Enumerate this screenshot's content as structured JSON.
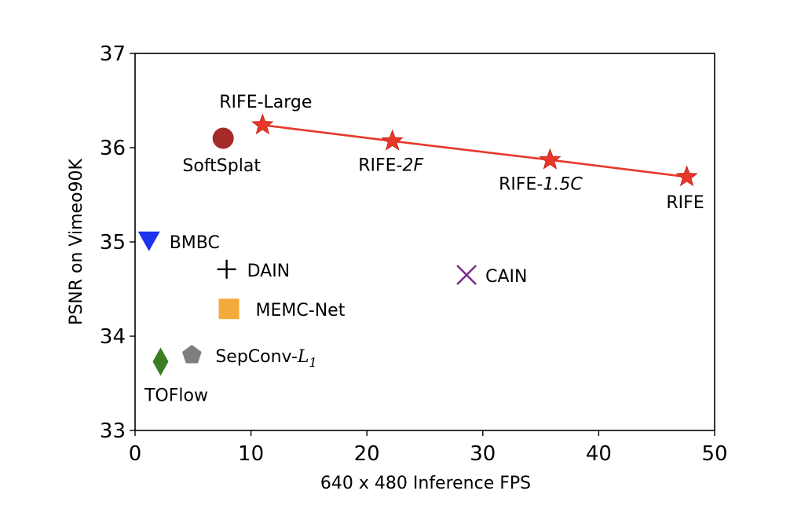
{
  "chart_data": {
    "type": "scatter",
    "title": "",
    "xlabel": "640 x 480 Inference FPS",
    "ylabel": "PSNR on Vimeo90K",
    "xlim": [
      0,
      50
    ],
    "ylim": [
      33,
      37
    ],
    "xticks": [
      "0",
      "10",
      "20",
      "30",
      "40",
      "50"
    ],
    "yticks": [
      "33",
      "34",
      "35",
      "36",
      "37"
    ],
    "grid": false,
    "legend": "none",
    "line_series": {
      "color": "#e8372b",
      "points": [
        {
          "x": 11.0,
          "y": 36.24
        },
        {
          "x": 22.2,
          "y": 36.07
        },
        {
          "x": 35.8,
          "y": 35.87
        },
        {
          "x": 47.6,
          "y": 35.69
        }
      ]
    },
    "points": [
      {
        "id": "rife-large",
        "x": 11.0,
        "y": 36.24,
        "marker": "star",
        "color": "#e8372b",
        "label_parts": [
          {
            "text": "RIFE-Large",
            "italic": false
          }
        ]
      },
      {
        "id": "rife-2f",
        "x": 22.2,
        "y": 36.07,
        "marker": "star",
        "color": "#e8372b",
        "label_parts": [
          {
            "text": "RIFE-",
            "italic": false
          },
          {
            "text": "2F",
            "italic": true
          }
        ]
      },
      {
        "id": "rife-15c",
        "x": 35.8,
        "y": 35.87,
        "marker": "star",
        "color": "#e8372b",
        "label_parts": [
          {
            "text": "RIFE-",
            "italic": false
          },
          {
            "text": "1.5C",
            "italic": true
          }
        ]
      },
      {
        "id": "rife",
        "x": 47.6,
        "y": 35.69,
        "marker": "star",
        "color": "#e8372b",
        "label_parts": [
          {
            "text": "RIFE",
            "italic": false
          }
        ]
      },
      {
        "id": "softsplat",
        "x": 7.6,
        "y": 36.1,
        "marker": "circle",
        "color": "#a52a2a",
        "label_parts": [
          {
            "text": "SoftSplat",
            "italic": false
          }
        ]
      },
      {
        "id": "bmbc",
        "x": 1.2,
        "y": 35.01,
        "marker": "triangle-down",
        "color": "#1f32f0",
        "label_parts": [
          {
            "text": "BMBC",
            "italic": false
          }
        ]
      },
      {
        "id": "dain",
        "x": 7.9,
        "y": 34.71,
        "marker": "plus",
        "color": "#000000",
        "label_parts": [
          {
            "text": "DAIN",
            "italic": false
          }
        ]
      },
      {
        "id": "cain",
        "x": 28.6,
        "y": 34.65,
        "marker": "x",
        "color": "#7b2d8e",
        "label_parts": [
          {
            "text": "CAIN",
            "italic": false
          }
        ]
      },
      {
        "id": "memc-net",
        "x": 8.1,
        "y": 34.29,
        "marker": "square",
        "color": "#f4a93b",
        "label_parts": [
          {
            "text": "MEMC-Net",
            "italic": false
          }
        ]
      },
      {
        "id": "sepconv-l1",
        "x": 4.9,
        "y": 33.8,
        "marker": "pentagon",
        "color": "#7f7f7f",
        "label_parts": [
          {
            "text": "SepConv-",
            "italic": false
          },
          {
            "text": "L",
            "math": true
          },
          {
            "text": "1",
            "sub": true
          }
        ]
      },
      {
        "id": "toflow",
        "x": 2.2,
        "y": 33.73,
        "marker": "diamond",
        "color": "#3a7d22",
        "label_parts": [
          {
            "text": "TOFlow",
            "italic": false
          }
        ]
      }
    ]
  }
}
